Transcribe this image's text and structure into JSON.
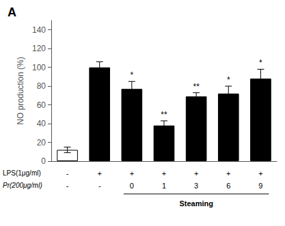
{
  "chart_data": {
    "type": "bar",
    "title": "A",
    "ylabel": "NO production (%)",
    "categories": [
      null,
      null,
      null,
      null,
      null,
      null,
      null
    ],
    "values": [
      12,
      100,
      77,
      38,
      69,
      72,
      88
    ],
    "errors": [
      3,
      6,
      8,
      5,
      4,
      8,
      10
    ],
    "colors": [
      "white",
      "black",
      "black",
      "black",
      "black",
      "black",
      "black"
    ],
    "significance": [
      null,
      null,
      "*",
      "**",
      "**",
      "*",
      "*"
    ],
    "rows": [
      {
        "label": "LPS(1μg/ml)",
        "values": [
          "-",
          "+",
          "+",
          "+",
          "+",
          "+",
          "+"
        ]
      },
      {
        "label": "Pr(200μg/ml)",
        "values": [
          "-",
          "-",
          "0",
          "1",
          "3",
          "6",
          "9"
        ]
      }
    ],
    "annotations": [
      {
        "text": "Steaming",
        "span": [
          2,
          6
        ]
      }
    ],
    "ylim": [
      0,
      150
    ],
    "yticks": [
      0,
      20,
      40,
      60,
      80,
      100,
      120,
      140
    ],
    "grid": false,
    "tick_labels": "y"
  }
}
